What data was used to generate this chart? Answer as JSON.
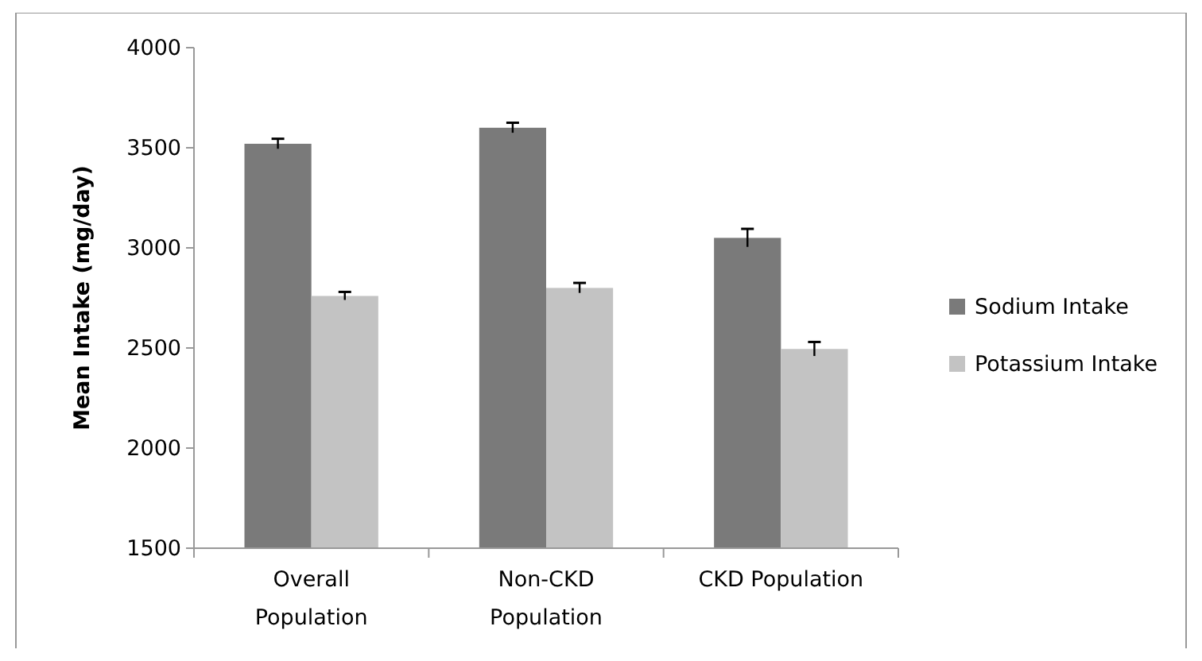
{
  "chart_data": {
    "type": "bar",
    "ylabel": "Mean Intake (mg/day)",
    "categories": [
      "Overall Population",
      "Non-CKD Population",
      "CKD Population"
    ],
    "series": [
      {
        "name": "Sodium Intake",
        "color": "#7a7a7a",
        "values": [
          3520,
          3600,
          3050
        ],
        "errors": [
          25,
          25,
          45
        ]
      },
      {
        "name": "Potassium Intake",
        "color": "#c3c3c3",
        "values": [
          2760,
          2800,
          2495
        ],
        "errors": [
          20,
          25,
          35
        ]
      }
    ],
    "ylim": [
      1500,
      4000
    ],
    "yticks": [
      1500,
      2000,
      2500,
      3000,
      3500,
      4000
    ],
    "grid": false,
    "legend": "right"
  }
}
